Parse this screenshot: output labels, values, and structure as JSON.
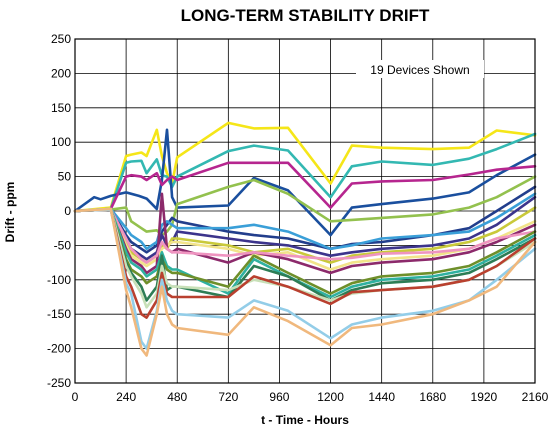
{
  "chart_data": {
    "type": "line",
    "title": "LONG-TERM STABILITY DRIFT",
    "xlabel": "t - Time - Hours",
    "ylabel": "Drift - ppm",
    "annotation": "19 Devices Shown",
    "xlim": [
      0,
      2160
    ],
    "ylim": [
      -250,
      250
    ],
    "xticks": [
      0,
      240,
      480,
      720,
      960,
      1200,
      1440,
      1680,
      1920,
      2160
    ],
    "yticks": [
      -250,
      -200,
      -150,
      -100,
      -50,
      0,
      50,
      100,
      150,
      200,
      250
    ],
    "grid": true,
    "series": [
      {
        "color": "#f5e618",
        "x": [
          0,
          168,
          240,
          264,
          312,
          336,
          384,
          408,
          432,
          456,
          480,
          720,
          840,
          1000,
          1200,
          1300,
          1440,
          1680,
          1850,
          1980,
          2160
        ],
        "y": [
          0,
          5,
          80,
          82,
          85,
          80,
          118,
          80,
          55,
          40,
          78,
          128,
          120,
          121,
          40,
          95,
          92,
          90,
          92,
          117,
          110
        ]
      },
      {
        "color": "#33b8b2",
        "x": [
          0,
          168,
          240,
          264,
          312,
          336,
          384,
          408,
          432,
          456,
          480,
          720,
          840,
          1000,
          1200,
          1300,
          1440,
          1680,
          1850,
          1980,
          2160
        ],
        "y": [
          0,
          3,
          70,
          72,
          73,
          55,
          75,
          52,
          50,
          35,
          50,
          87,
          95,
          88,
          20,
          65,
          72,
          67,
          76,
          90,
          112
        ]
      },
      {
        "color": "#1a4f9e",
        "x": [
          0,
          90,
          120,
          168,
          240,
          300,
          336,
          384,
          408,
          432,
          456,
          480,
          720,
          840,
          1000,
          1200,
          1300,
          1440,
          1680,
          1850,
          1980,
          2160
        ],
        "y": [
          0,
          20,
          17,
          22,
          27,
          22,
          18,
          3,
          45,
          118,
          20,
          5,
          8,
          48,
          30,
          -35,
          5,
          10,
          18,
          27,
          52,
          82
        ]
      },
      {
        "color": "#b6268f",
        "x": [
          0,
          168,
          240,
          264,
          312,
          336,
          384,
          408,
          432,
          456,
          480,
          720,
          840,
          1000,
          1200,
          1300,
          1440,
          1680,
          1850,
          1980,
          2160
        ],
        "y": [
          0,
          3,
          50,
          52,
          50,
          45,
          55,
          38,
          45,
          50,
          45,
          70,
          70,
          70,
          5,
          40,
          43,
          45,
          53,
          60,
          65
        ]
      },
      {
        "color": "#93c14e",
        "x": [
          0,
          168,
          240,
          264,
          312,
          336,
          384,
          408,
          432,
          456,
          480,
          720,
          840,
          1000,
          1200,
          1300,
          1440,
          1680,
          1850,
          1980,
          2160
        ],
        "y": [
          0,
          2,
          5,
          -15,
          -25,
          -30,
          -28,
          -35,
          -30,
          -20,
          10,
          35,
          45,
          25,
          -15,
          -13,
          -10,
          -5,
          5,
          20,
          50
        ]
      },
      {
        "color": "#223e8c",
        "x": [
          0,
          168,
          240,
          264,
          312,
          336,
          384,
          408,
          432,
          456,
          480,
          720,
          840,
          1000,
          1200,
          1300,
          1440,
          1680,
          1850,
          1980,
          2160
        ],
        "y": [
          0,
          2,
          -35,
          -45,
          -55,
          -60,
          -50,
          -30,
          -20,
          -10,
          -15,
          -30,
          -35,
          -40,
          -55,
          -48,
          -45,
          -35,
          -25,
          0,
          35
        ]
      },
      {
        "color": "#3a9fd8",
        "x": [
          0,
          168,
          240,
          264,
          312,
          336,
          384,
          408,
          432,
          456,
          480,
          720,
          840,
          1000,
          1200,
          1300,
          1440,
          1680,
          1850,
          1980,
          2160
        ],
        "y": [
          0,
          3,
          -25,
          -35,
          -45,
          -55,
          -45,
          -20,
          -15,
          -20,
          -25,
          -25,
          -20,
          -30,
          -55,
          -50,
          -40,
          -35,
          -30,
          -10,
          25
        ]
      },
      {
        "color": "#3c348c",
        "x": [
          0,
          168,
          240,
          264,
          312,
          336,
          384,
          408,
          432,
          456,
          480,
          720,
          840,
          1000,
          1200,
          1300,
          1440,
          1680,
          1850,
          1980,
          2160
        ],
        "y": [
          0,
          2,
          -40,
          -55,
          -65,
          -70,
          -60,
          -35,
          -50,
          -45,
          -30,
          -40,
          -45,
          -50,
          -65,
          -60,
          -55,
          -50,
          -40,
          -20,
          20
        ]
      },
      {
        "color": "#c9c93a",
        "x": [
          0,
          168,
          240,
          264,
          312,
          336,
          384,
          408,
          432,
          456,
          480,
          720,
          840,
          1000,
          1200,
          1300,
          1440,
          1680,
          1850,
          1980,
          2160
        ],
        "y": [
          0,
          2,
          -45,
          -60,
          -70,
          -75,
          -65,
          -50,
          -55,
          -40,
          -40,
          -50,
          -60,
          -55,
          -75,
          -65,
          -60,
          -55,
          -45,
          -30,
          5
        ]
      },
      {
        "color": "#f2e48a",
        "x": [
          0,
          168,
          240,
          264,
          312,
          336,
          384,
          408,
          432,
          456,
          480,
          720,
          840,
          1000,
          1200,
          1300,
          1440,
          1680,
          1850,
          1980,
          2160
        ],
        "y": [
          0,
          3,
          -50,
          -65,
          -75,
          -80,
          -70,
          -55,
          -50,
          -45,
          -45,
          -55,
          -65,
          -60,
          -85,
          -75,
          -70,
          -65,
          -55,
          -40,
          -15
        ]
      },
      {
        "color": "#8c2a6b",
        "x": [
          0,
          168,
          240,
          264,
          312,
          336,
          384,
          408,
          432,
          456,
          480,
          720,
          840,
          1000,
          1200,
          1300,
          1440,
          1680,
          1850,
          1980,
          2160
        ],
        "y": [
          0,
          2,
          -55,
          -70,
          -80,
          -90,
          -80,
          25,
          -55,
          -60,
          -55,
          -75,
          -60,
          -70,
          -90,
          -80,
          -75,
          -70,
          -60,
          -45,
          -20
        ]
      },
      {
        "color": "#ef94c0",
        "x": [
          0,
          168,
          240,
          264,
          312,
          336,
          384,
          408,
          432,
          456,
          480,
          720,
          840,
          1000,
          1200,
          1300,
          1440,
          1680,
          1850,
          1980,
          2160
        ],
        "y": [
          0,
          2,
          -40,
          -55,
          -70,
          -75,
          -65,
          -45,
          -55,
          -60,
          -60,
          -65,
          -60,
          -65,
          -70,
          -68,
          -62,
          -60,
          -55,
          -40,
          -30
        ]
      },
      {
        "color": "#2fb1a0",
        "x": [
          0,
          168,
          240,
          264,
          312,
          336,
          384,
          408,
          432,
          456,
          480,
          720,
          840,
          1000,
          1200,
          1300,
          1440,
          1680,
          1850,
          1980,
          2160
        ],
        "y": [
          0,
          3,
          -60,
          -75,
          -85,
          -95,
          -85,
          -60,
          -80,
          -85,
          -85,
          -120,
          -70,
          -95,
          -125,
          -110,
          -100,
          -95,
          -85,
          -65,
          -35
        ]
      },
      {
        "color": "#6e8f2a",
        "x": [
          0,
          168,
          240,
          264,
          312,
          336,
          384,
          408,
          432,
          456,
          480,
          720,
          840,
          1000,
          1200,
          1300,
          1440,
          1680,
          1850,
          1980,
          2160
        ],
        "y": [
          0,
          2,
          -70,
          -85,
          -95,
          -105,
          -95,
          -70,
          -85,
          -90,
          -90,
          -110,
          -65,
          -90,
          -120,
          -105,
          -95,
          -90,
          -80,
          -60,
          -30
        ]
      },
      {
        "color": "#2d7d55",
        "x": [
          0,
          168,
          240,
          264,
          312,
          336,
          384,
          408,
          432,
          456,
          480,
          720,
          840,
          1000,
          1200,
          1300,
          1440,
          1680,
          1850,
          1980,
          2160
        ],
        "y": [
          0,
          2,
          -75,
          -90,
          -110,
          -130,
          -110,
          -65,
          -115,
          -110,
          -110,
          -125,
          -80,
          -95,
          -130,
          -115,
          -105,
          -100,
          -90,
          -70,
          -40
        ]
      },
      {
        "color": "#c8e0b8",
        "x": [
          0,
          168,
          240,
          264,
          312,
          336,
          384,
          408,
          432,
          456,
          480,
          720,
          840,
          1000,
          1200,
          1300,
          1440,
          1680,
          1850,
          1980,
          2160
        ],
        "y": [
          0,
          3,
          -80,
          -95,
          -120,
          -140,
          -120,
          -80,
          -105,
          -110,
          -110,
          -115,
          -100,
          -110,
          -130,
          -120,
          -115,
          -110,
          -100,
          -80,
          -45
        ]
      },
      {
        "color": "#b9402f",
        "x": [
          0,
          168,
          240,
          264,
          312,
          336,
          384,
          408,
          432,
          456,
          480,
          720,
          840,
          1000,
          1200,
          1300,
          1440,
          1680,
          1850,
          1980,
          2160
        ],
        "y": [
          0,
          2,
          -95,
          -110,
          -150,
          -155,
          -130,
          -90,
          -120,
          -125,
          -125,
          -125,
          -95,
          -110,
          -135,
          -118,
          -115,
          -110,
          -100,
          -80,
          -40
        ]
      },
      {
        "color": "#93cde8",
        "x": [
          0,
          168,
          240,
          264,
          312,
          336,
          384,
          408,
          432,
          456,
          480,
          720,
          840,
          1000,
          1200,
          1300,
          1440,
          1680,
          1850,
          1980,
          2160
        ],
        "y": [
          0,
          2,
          -105,
          -120,
          -190,
          -200,
          -145,
          -100,
          -130,
          -145,
          -150,
          -155,
          -130,
          -145,
          -185,
          -165,
          -155,
          -145,
          -130,
          -100,
          -55
        ]
      },
      {
        "color": "#f0b87d",
        "x": [
          0,
          168,
          240,
          264,
          312,
          336,
          384,
          408,
          432,
          456,
          480,
          720,
          840,
          1000,
          1200,
          1300,
          1440,
          1680,
          1850,
          1980,
          2160
        ],
        "y": [
          0,
          3,
          -115,
          -140,
          -200,
          -210,
          -150,
          -110,
          -150,
          -165,
          -170,
          -180,
          -140,
          -160,
          -195,
          -170,
          -165,
          -150,
          -130,
          -110,
          -45
        ]
      }
    ]
  }
}
